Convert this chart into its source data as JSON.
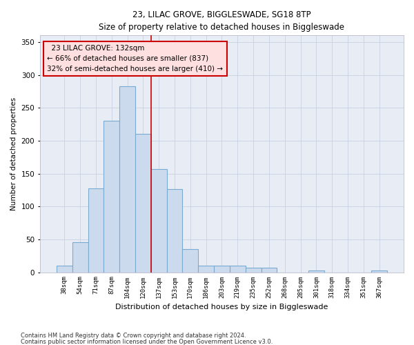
{
  "title1": "23, LILAC GROVE, BIGGLESWADE, SG18 8TP",
  "title2": "Size of property relative to detached houses in Biggleswade",
  "xlabel": "Distribution of detached houses by size in Biggleswade",
  "ylabel": "Number of detached properties",
  "footnote1": "Contains HM Land Registry data © Crown copyright and database right 2024.",
  "footnote2": "Contains public sector information licensed under the Open Government Licence v3.0.",
  "categories": [
    "38sqm",
    "54sqm",
    "71sqm",
    "87sqm",
    "104sqm",
    "120sqm",
    "137sqm",
    "153sqm",
    "170sqm",
    "186sqm",
    "203sqm",
    "219sqm",
    "235sqm",
    "252sqm",
    "268sqm",
    "285sqm",
    "301sqm",
    "318sqm",
    "334sqm",
    "351sqm",
    "367sqm"
  ],
  "values": [
    10,
    46,
    127,
    230,
    283,
    210,
    157,
    126,
    35,
    10,
    10,
    10,
    7,
    7,
    0,
    0,
    3,
    0,
    0,
    0,
    3
  ],
  "bar_color": "#ccdaee",
  "bar_edge_color": "#7aaad0",
  "grid_color": "#c8d0e0",
  "bg_color": "#e8edf5",
  "annotation_box_color": "#ffe0e0",
  "annotation_border_color": "#cc0000",
  "vline_color": "#cc0000",
  "vline_x": 5.5,
  "property_label": "23 LILAC GROVE: 132sqm",
  "smaller_pct": 66,
  "smaller_count": 837,
  "larger_pct": 32,
  "larger_count": 410,
  "ylim": [
    0,
    360
  ],
  "yticks": [
    0,
    50,
    100,
    150,
    200,
    250,
    300,
    350
  ]
}
